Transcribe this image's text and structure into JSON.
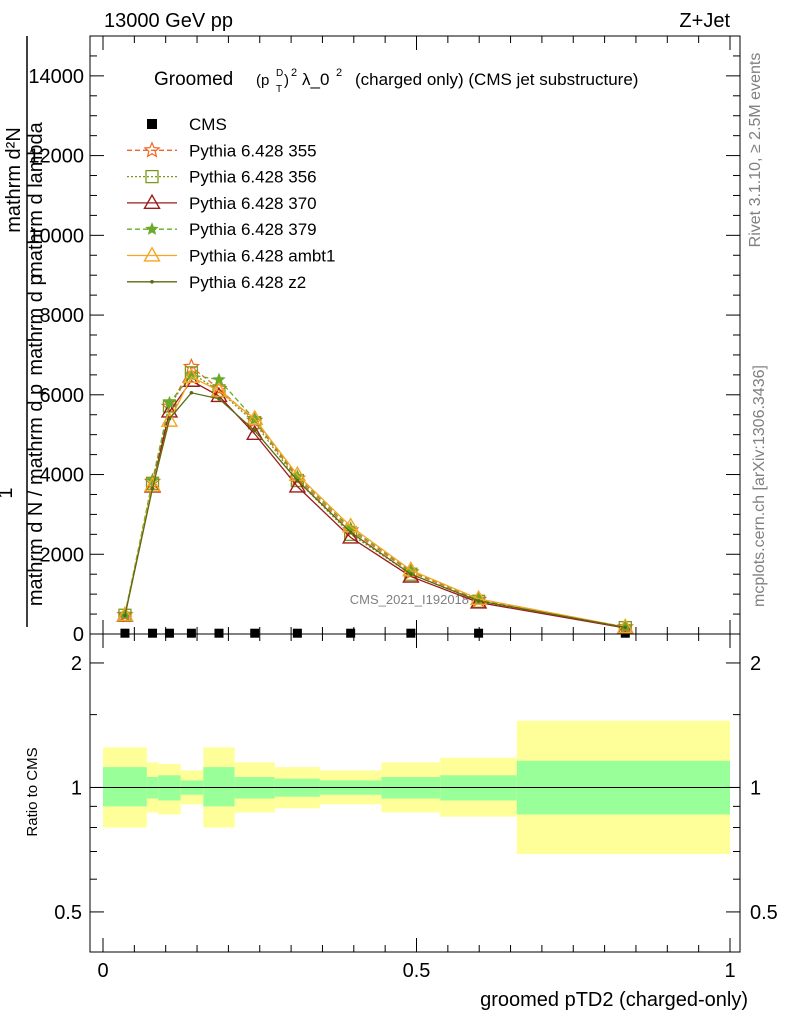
{
  "header": {
    "energy_label": "13000 GeV pp",
    "process_label": "Z+Jet"
  },
  "side_labels": {
    "rivet": "Rivet 3.1.10, ≥ 2.5M events",
    "mcplots": "mcplots.cern.ch [arXiv:1306.3436]"
  },
  "watermark": "CMS_2021_I1920187",
  "chart_data": [
    {
      "type": "line",
      "title_parts": {
        "prefix": "Groomed",
        "p": "(p",
        "sup_D": "D",
        "sub_T": "T",
        "close": ")",
        "sup_2": "2",
        "mid": "λ_0",
        "sup_2b": "2",
        "suffix": "(charged only) (CMS jet substructure)"
      },
      "ylabel_upper": "mathrm d²N",
      "ylabel_upper_2": "mathrm d p",
      "ylabel_upper_3": "T",
      "ylabel_upper_4": "mathrm d lambda",
      "ylabel_one": "1",
      "ylabel_lower": "mathrm d N / mathrm d p",
      "ylabel_lower_2": "T",
      "ylabel_lower_3": "mathrm d λ",
      "ylim": [
        0,
        15000
      ],
      "xlim": [
        0,
        1
      ],
      "yticks": [
        {
          "v": 0,
          "label": "0"
        },
        {
          "v": 2000,
          "label": "2000"
        },
        {
          "v": 4000,
          "label": "4000"
        },
        {
          "v": 6000,
          "label": "6000"
        },
        {
          "v": 8000,
          "label": "8000"
        },
        {
          "v": 10000,
          "label": "10000"
        },
        {
          "v": 12000,
          "label": "12000"
        },
        {
          "v": 14000,
          "label": "14000"
        }
      ],
      "legend": [
        {
          "name": "CMS",
          "color": "#000000",
          "marker": "square",
          "dash": ""
        },
        {
          "name": "Pythia 6.428 355",
          "color": "#f26522",
          "marker": "star",
          "dash": "5,3"
        },
        {
          "name": "Pythia 6.428 356",
          "color": "#7a9a1a",
          "marker": "square-open",
          "dash": "2,2"
        },
        {
          "name": "Pythia 6.428 370",
          "color": "#9b1b1b",
          "marker": "triangle-open",
          "dash": ""
        },
        {
          "name": "Pythia 6.428 379",
          "color": "#6aaa2a",
          "marker": "star-small",
          "dash": "5,3"
        },
        {
          "name": "Pythia 6.428 ambt1",
          "color": "#f5a623",
          "marker": "triangle-open",
          "dash": ""
        },
        {
          "name": "Pythia 6.428 z2",
          "color": "#5a6a10",
          "marker": "dot",
          "dash": ""
        }
      ],
      "x": [
        0.035,
        0.079,
        0.106,
        0.141,
        0.185,
        0.242,
        0.31,
        0.395,
        0.491,
        0.599,
        0.833
      ],
      "series": [
        {
          "name": "CMS",
          "values": [
            20,
            20,
            20,
            20,
            20,
            20,
            20,
            20,
            20,
            20,
            20
          ]
        },
        {
          "name": "Pythia 6.428 355",
          "values": [
            480,
            3820,
            5700,
            6700,
            6150,
            5350,
            3900,
            2600,
            1550,
            860,
            170
          ]
        },
        {
          "name": "Pythia 6.428 356",
          "values": [
            470,
            3780,
            5720,
            6550,
            6100,
            5300,
            3850,
            2500,
            1500,
            820,
            160
          ]
        },
        {
          "name": "Pythia 6.428 370",
          "values": [
            460,
            3700,
            5580,
            6350,
            5970,
            5020,
            3700,
            2420,
            1440,
            790,
            150
          ]
        },
        {
          "name": "Pythia 6.428 379",
          "values": [
            490,
            3850,
            5800,
            6500,
            6380,
            5380,
            3950,
            2650,
            1580,
            870,
            175
          ]
        },
        {
          "name": "Pythia 6.428 ambt1",
          "values": [
            470,
            3720,
            5350,
            6450,
            6100,
            5400,
            3990,
            2700,
            1600,
            880,
            170
          ]
        },
        {
          "name": "Pythia 6.428 z2",
          "values": [
            460,
            3650,
            5400,
            6050,
            5900,
            5100,
            3850,
            2550,
            1500,
            830,
            165
          ]
        }
      ]
    },
    {
      "type": "area",
      "ylabel": "Ratio to CMS",
      "xlabel": "groomed pTD2 (charged-only)",
      "ylim": [
        0.4,
        2.35
      ],
      "yscale": "log",
      "yticks": [
        {
          "v": 0.5,
          "label": "0.5"
        },
        {
          "v": 1,
          "label": "1"
        },
        {
          "v": 2,
          "label": "2"
        }
      ],
      "xticks": [
        {
          "v": 0,
          "label": "0"
        },
        {
          "v": 0.5,
          "label": "0.5"
        },
        {
          "v": 1,
          "label": "1"
        }
      ],
      "bin_edges": [
        0,
        0.07,
        0.088,
        0.124,
        0.16,
        0.21,
        0.274,
        0.346,
        0.444,
        0.538,
        0.66,
        1.0
      ],
      "band_yellow": [
        [
          0.8,
          1.25
        ],
        [
          0.87,
          1.15
        ],
        [
          0.86,
          1.14
        ],
        [
          0.91,
          1.1
        ],
        [
          0.8,
          1.25
        ],
        [
          0.87,
          1.15
        ],
        [
          0.89,
          1.12
        ],
        [
          0.91,
          1.1
        ],
        [
          0.87,
          1.15
        ],
        [
          0.85,
          1.18
        ],
        [
          0.69,
          1.45
        ]
      ],
      "band_green": [
        [
          0.9,
          1.12
        ],
        [
          0.94,
          1.06
        ],
        [
          0.93,
          1.07
        ],
        [
          0.96,
          1.04
        ],
        [
          0.9,
          1.12
        ],
        [
          0.94,
          1.06
        ],
        [
          0.95,
          1.05
        ],
        [
          0.96,
          1.04
        ],
        [
          0.94,
          1.06
        ],
        [
          0.93,
          1.07
        ],
        [
          0.86,
          1.16
        ]
      ],
      "colors": {
        "yellow": "#ffff99",
        "green": "#99ff99"
      }
    }
  ]
}
